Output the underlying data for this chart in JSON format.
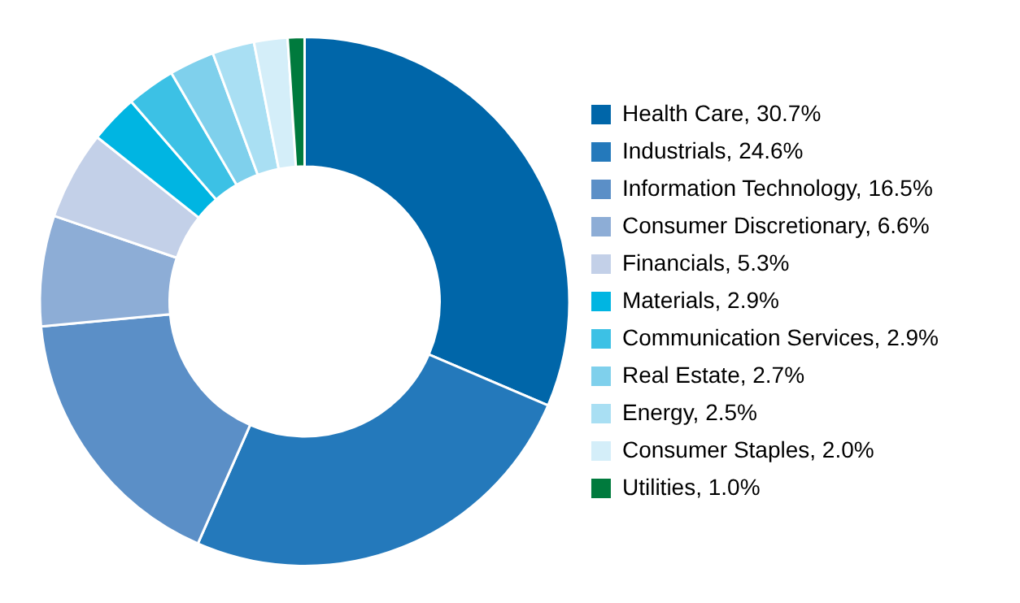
{
  "chart_data": {
    "type": "donut",
    "categories": [
      "Health Care",
      "Industrials",
      "Information Technology",
      "Consumer Discretionary",
      "Financials",
      "Materials",
      "Communication Services",
      "Real Estate",
      "Energy",
      "Consumer Staples",
      "Utilities"
    ],
    "values": [
      30.7,
      24.6,
      16.5,
      6.6,
      5.3,
      2.9,
      2.9,
      2.7,
      2.5,
      2.0,
      1.0
    ],
    "value_labels": [
      "30.7%",
      "24.6%",
      "16.5%",
      "6.6%",
      "5.3%",
      "2.9%",
      "2.9%",
      "2.7%",
      "2.5%",
      "2.0%",
      "1.0%"
    ],
    "colors": [
      "#0066a9",
      "#2479bb",
      "#5b8fc7",
      "#8dadd6",
      "#c3d0e8",
      "#00b5e2",
      "#3cc1e5",
      "#7fd0ec",
      "#a9dff3",
      "#d4eef9",
      "#007a3d"
    ],
    "legend": "right"
  }
}
